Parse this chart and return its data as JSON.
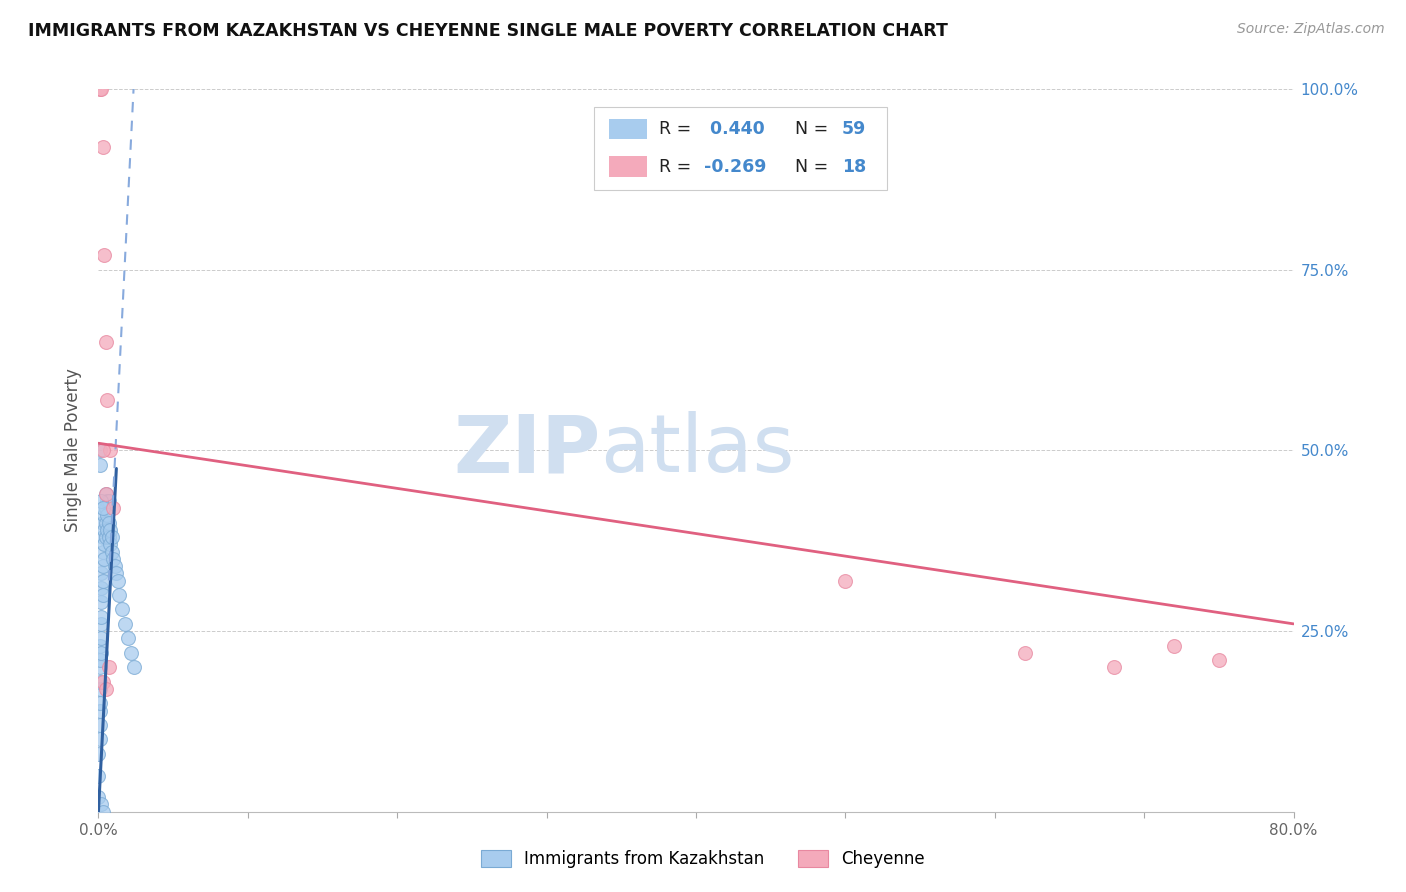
{
  "title": "IMMIGRANTS FROM KAZAKHSTAN VS CHEYENNE SINGLE MALE POVERTY CORRELATION CHART",
  "source": "Source: ZipAtlas.com",
  "ylabel": "Single Male Poverty",
  "x_min": 0.0,
  "x_max": 0.8,
  "y_min": 0.0,
  "y_max": 1.0,
  "blue_R": 0.44,
  "blue_N": 59,
  "pink_R": -0.269,
  "pink_N": 18,
  "blue_color": "#A8CCEE",
  "blue_edge_color": "#7AAAD4",
  "pink_color": "#F4AABB",
  "pink_edge_color": "#E888A0",
  "blue_line_color": "#3060A0",
  "blue_dash_color": "#88AADD",
  "pink_line_color": "#E06080",
  "watermark_color": "#D0DFF0",
  "legend_label_blue": "Immigrants from Kazakhstan",
  "legend_label_pink": "Cheyenne",
  "blue_scatter_x": [
    0.0,
    0.0,
    0.0,
    0.001,
    0.001,
    0.001,
    0.001,
    0.001,
    0.001,
    0.001,
    0.001,
    0.001,
    0.002,
    0.002,
    0.002,
    0.002,
    0.002,
    0.002,
    0.002,
    0.003,
    0.003,
    0.003,
    0.003,
    0.003,
    0.003,
    0.004,
    0.004,
    0.004,
    0.004,
    0.005,
    0.005,
    0.005,
    0.005,
    0.006,
    0.006,
    0.006,
    0.007,
    0.007,
    0.007,
    0.008,
    0.008,
    0.009,
    0.009,
    0.01,
    0.011,
    0.012,
    0.013,
    0.014,
    0.016,
    0.018,
    0.02,
    0.022,
    0.024,
    0.001,
    0.001,
    0.002,
    0.003,
    0.002,
    0.003
  ],
  "blue_scatter_y": [
    0.02,
    0.05,
    0.08,
    0.1,
    0.12,
    0.14,
    0.15,
    0.17,
    0.18,
    0.2,
    0.21,
    0.23,
    0.22,
    0.24,
    0.26,
    0.27,
    0.29,
    0.31,
    0.33,
    0.3,
    0.32,
    0.34,
    0.36,
    0.38,
    0.4,
    0.35,
    0.37,
    0.39,
    0.41,
    0.38,
    0.4,
    0.42,
    0.44,
    0.39,
    0.41,
    0.43,
    0.38,
    0.4,
    0.43,
    0.37,
    0.39,
    0.36,
    0.38,
    0.35,
    0.34,
    0.33,
    0.32,
    0.3,
    0.28,
    0.26,
    0.24,
    0.22,
    0.2,
    0.48,
    0.5,
    0.43,
    0.42,
    0.01,
    0.0
  ],
  "pink_scatter_x": [
    0.001,
    0.002,
    0.003,
    0.004,
    0.005,
    0.006,
    0.008,
    0.01,
    0.003,
    0.005,
    0.007,
    0.003,
    0.005,
    0.5,
    0.62,
    0.68,
    0.72,
    0.75
  ],
  "pink_scatter_y": [
    1.0,
    1.0,
    0.92,
    0.77,
    0.65,
    0.57,
    0.5,
    0.42,
    0.5,
    0.44,
    0.2,
    0.18,
    0.17,
    0.32,
    0.22,
    0.2,
    0.23,
    0.21
  ],
  "blue_solid_line": [
    [
      0.0,
      0.012
    ],
    [
      0.0,
      0.475
    ]
  ],
  "blue_dash_line": [
    [
      0.007,
      0.024
    ],
    [
      0.32,
      1.02
    ]
  ],
  "pink_line": [
    [
      0.0,
      0.8
    ],
    [
      0.51,
      0.26
    ]
  ]
}
